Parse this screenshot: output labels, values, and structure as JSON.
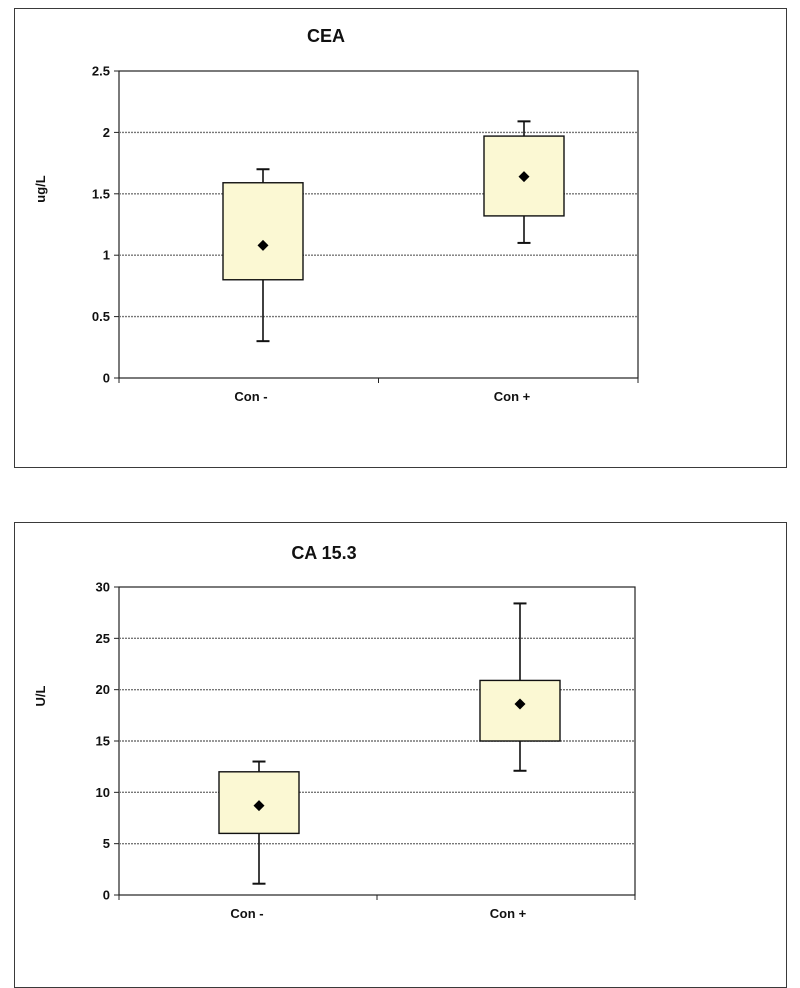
{
  "chart_data": [
    {
      "type": "box",
      "title": "CEA",
      "xlabel": "",
      "ylabel": "ug/L",
      "ylim": [
        0,
        2.5
      ],
      "yticks": [
        "0",
        "0.5",
        "1",
        "1.5",
        "2",
        "2.5"
      ],
      "categories": [
        "Con  -",
        "Con +"
      ],
      "boxes": [
        {
          "whisker_low": 0.3,
          "q1": 0.8,
          "mean": 1.08,
          "q3": 1.59,
          "whisker_high": 1.7
        },
        {
          "whisker_low": 1.1,
          "q1": 1.32,
          "mean": 1.64,
          "q3": 1.97,
          "whisker_high": 2.09
        }
      ],
      "grid": true,
      "box_color": "#FBF8D3",
      "grid_color": "#777777"
    },
    {
      "type": "box",
      "title": "CA 15.3",
      "xlabel": "",
      "ylabel": "U/L",
      "ylim": [
        0,
        30
      ],
      "yticks": [
        "0",
        "5",
        "10",
        "15",
        "20",
        "25",
        "30"
      ],
      "categories": [
        "Con  -",
        "Con +"
      ],
      "boxes": [
        {
          "whisker_low": 1.1,
          "q1": 6.0,
          "mean": 8.7,
          "q3": 12.0,
          "whisker_high": 13.0
        },
        {
          "whisker_low": 12.1,
          "q1": 15.0,
          "mean": 18.6,
          "q3": 20.9,
          "whisker_high": 28.4
        }
      ],
      "grid": true,
      "box_color": "#FBF8D3",
      "grid_color": "#777777"
    }
  ]
}
